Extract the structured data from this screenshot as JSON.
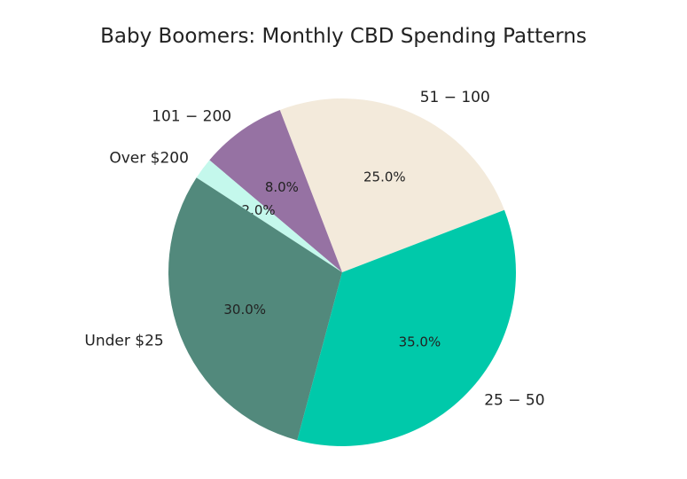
{
  "chart_data": {
    "type": "pie",
    "title": "Baby Boomers: Monthly CBD Spending Patterns",
    "categories": [
      "$51-$100",
      "$101-$200",
      "Over $200",
      "Under $25",
      "$25-$50"
    ],
    "category_display": [
      "51 − 100",
      "101 − 200",
      "Over $200",
      "Under $25",
      "25 − 50"
    ],
    "values": [
      25,
      8,
      2,
      30,
      35
    ],
    "value_labels": [
      "25.0%",
      "8.0%",
      "2.0%",
      "30.0%",
      "35.0%"
    ],
    "colors": [
      "#f3eadb",
      "#9672a3",
      "#c4f8ec",
      "#52897c",
      "#00c9aa"
    ],
    "start_angle_deg": 21,
    "direction": "counterclockwise",
    "legend": "none"
  }
}
